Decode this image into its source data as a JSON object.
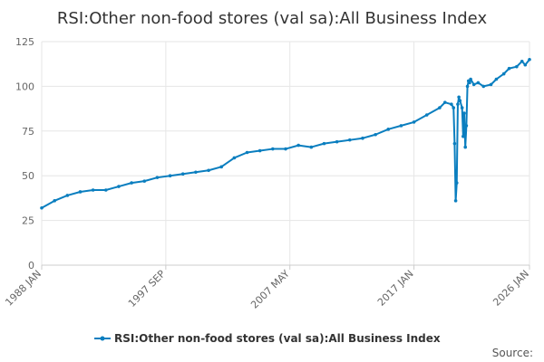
{
  "chart_data": {
    "type": "line",
    "title": "RSI:Other non-food stores (val sa):All Business Index",
    "xlabel": "",
    "ylabel": "",
    "ylim": [
      0,
      125
    ],
    "yticks": [
      "0",
      "25",
      "50",
      "75",
      "100",
      "125"
    ],
    "xlim": [
      "1988-01",
      "2026-01"
    ],
    "xticks": [
      {
        "label": "1988 JAN",
        "date": "1988-01"
      },
      {
        "label": "1997 SEP",
        "date": "1997-09"
      },
      {
        "label": "2007 MAY",
        "date": "2007-05"
      },
      {
        "label": "2017 JAN",
        "date": "2017-01"
      },
      {
        "label": "2026 JAN",
        "date": "2026-01"
      }
    ],
    "grid": true,
    "legend_position": "bottom",
    "series": [
      {
        "name": "RSI:Other non-food stores (val sa):All Business Index",
        "color": "#0a7ebf",
        "x": [
          "1988-01",
          "1989-01",
          "1990-01",
          "1991-01",
          "1992-01",
          "1993-01",
          "1994-01",
          "1995-01",
          "1996-01",
          "1997-01",
          "1998-01",
          "1999-01",
          "2000-01",
          "2001-01",
          "2002-01",
          "2003-01",
          "2004-01",
          "2005-01",
          "2006-01",
          "2007-01",
          "2008-01",
          "2009-01",
          "2010-01",
          "2011-01",
          "2012-01",
          "2013-01",
          "2014-01",
          "2015-01",
          "2016-01",
          "2017-01",
          "2018-01",
          "2019-01",
          "2019-06",
          "2019-12",
          "2020-02",
          "2020-03",
          "2020-04",
          "2020-05",
          "2020-06",
          "2020-07",
          "2020-08",
          "2020-10",
          "2020-11",
          "2020-12",
          "2021-01",
          "2021-02",
          "2021-03",
          "2021-04",
          "2021-05",
          "2021-06",
          "2021-09",
          "2022-01",
          "2022-06",
          "2023-01",
          "2023-06",
          "2024-01",
          "2024-06",
          "2025-01",
          "2025-06",
          "2025-09",
          "2026-01"
        ],
        "values": [
          32,
          36,
          39,
          41,
          42,
          42,
          44,
          46,
          47,
          49,
          50,
          51,
          52,
          53,
          55,
          60,
          63,
          64,
          65,
          65,
          67,
          66,
          68,
          69,
          70,
          71,
          73,
          76,
          78,
          80,
          84,
          88,
          91,
          90,
          88,
          68,
          36,
          46,
          90,
          94,
          92,
          88,
          72,
          85,
          66,
          78,
          100,
          103,
          102,
          104,
          101,
          102,
          100,
          101,
          104,
          107,
          110,
          111,
          114,
          112,
          115
        ]
      }
    ],
    "legend_entries": [
      "RSI:Other non-food stores (val sa):All Business Index"
    ]
  },
  "footer": {
    "source_label": "Source:"
  }
}
